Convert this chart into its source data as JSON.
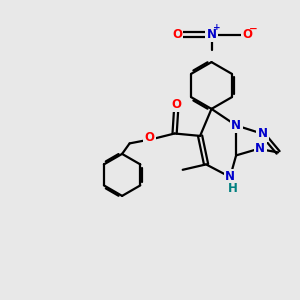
{
  "bg_color": "#e8e8e8",
  "bond_color": "#000000",
  "bond_width": 1.6,
  "atom_colors": {
    "N": "#0000cc",
    "O": "#ff0000",
    "H": "#008080",
    "C": "#000000"
  },
  "font_size_atom": 8.5
}
